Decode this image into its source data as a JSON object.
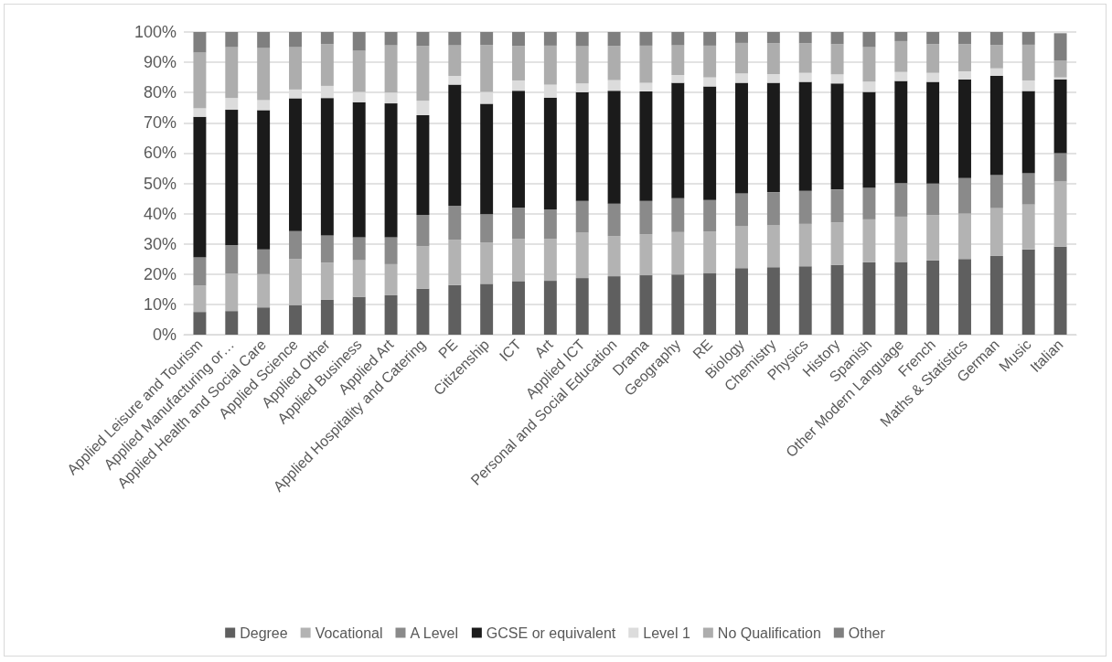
{
  "chart_data": {
    "type": "bar",
    "stacked": true,
    "grid": "y",
    "legend": "bottom",
    "categories": [
      "Applied Leisure and Tourism",
      "Applied Manufacturing or…",
      "Applied Health and Social Care",
      "Applied Science",
      "Applied Other",
      "Applied Business",
      "Applied Art",
      "Applied Hospitality and Catering",
      "PE",
      "Citizenship",
      "ICT",
      "Art",
      "Applied ICT",
      "Personal and Social Education",
      "Drama",
      "Geography",
      "RE",
      "Biology",
      "Chemistry",
      "Physics",
      "History",
      "Spanish",
      "Other Modern Language",
      "French",
      "Maths & Statistics",
      "German",
      "Music",
      "Italian"
    ],
    "series": [
      {
        "name": "Degree",
        "color": "#5f5f5f",
        "values": [
          7.5,
          7.8,
          9,
          9.8,
          11.5,
          12.5,
          13,
          15.2,
          16.4,
          16.8,
          17.7,
          17.8,
          18.7,
          19.3,
          19.6,
          19.9,
          20.4,
          22,
          22.3,
          22.6,
          23,
          23.9,
          24,
          24.5,
          25,
          26,
          28.2,
          29.1
        ]
      },
      {
        "name": "Vocational",
        "color": "#b3b3b3",
        "values": [
          8.7,
          12.4,
          11,
          15.2,
          12.3,
          12.1,
          10.3,
          14,
          15,
          13.7,
          13.9,
          13.8,
          15,
          13.3,
          13.6,
          14,
          13.7,
          13.8,
          13.8,
          14,
          14.1,
          14.2,
          15,
          15,
          15,
          15.8,
          14.8,
          21.5
        ]
      },
      {
        "name": "A Level",
        "color": "#8a8a8a",
        "values": [
          9.3,
          9.3,
          8.2,
          9.2,
          9,
          7.6,
          8.9,
          10.4,
          11.2,
          9.3,
          10.4,
          9.8,
          10.5,
          10.7,
          11,
          11.2,
          10.4,
          10.9,
          11,
          10.9,
          10.9,
          10.5,
          11.1,
          10.4,
          11.7,
          10.9,
          10.3,
          9.4
        ]
      },
      {
        "name": "GCSE or equivalent",
        "color": "#1b1b1b",
        "values": [
          46.5,
          44.8,
          46,
          43.9,
          45.4,
          44.6,
          44.2,
          32.9,
          40,
          36.5,
          38.6,
          36.9,
          35.9,
          37.3,
          36.2,
          38.1,
          37.5,
          36.5,
          36.1,
          36,
          35,
          31.6,
          33.7,
          33.6,
          32.6,
          32.8,
          27.2,
          24.4
        ]
      },
      {
        "name": "Level 1",
        "color": "#dcdcdc",
        "values": [
          2.8,
          3.9,
          3.3,
          2.9,
          4,
          3.4,
          3.6,
          4.8,
          2.9,
          3.9,
          3.4,
          4.3,
          2.9,
          3.5,
          2.8,
          2.6,
          3,
          3.1,
          2.9,
          3,
          3,
          3.4,
          3,
          3,
          2.7,
          2.5,
          3.5,
          0.6
        ]
      },
      {
        "name": "No Qualification",
        "color": "#adadad",
        "values": [
          18.4,
          16.8,
          17.2,
          14,
          13.8,
          13.6,
          15.6,
          18.1,
          10.1,
          15.5,
          11.4,
          12.9,
          12.3,
          11.3,
          12.3,
          9.8,
          10.5,
          10.1,
          10.2,
          9.8,
          10,
          11.4,
          10.2,
          9.5,
          9,
          7.7,
          11.8,
          5.5
        ]
      },
      {
        "name": "Other",
        "color": "#7f7f7f",
        "values": [
          6.8,
          5,
          5.3,
          5,
          4,
          6.2,
          4.4,
          4.6,
          4.4,
          4.3,
          4.6,
          4.5,
          4.7,
          4.6,
          4.5,
          4.4,
          4.5,
          3.6,
          3.7,
          3.7,
          4,
          5,
          3,
          4,
          4,
          4.3,
          4.2,
          9.1
        ]
      }
    ],
    "ylim": [
      0,
      100
    ],
    "yticks": [
      {
        "value": 0,
        "label": "0%"
      },
      {
        "value": 10,
        "label": "10%"
      },
      {
        "value": 20,
        "label": "20%"
      },
      {
        "value": 30,
        "label": "30%"
      },
      {
        "value": 40,
        "label": "40%"
      },
      {
        "value": 50,
        "label": "50%"
      },
      {
        "value": 60,
        "label": "60%"
      },
      {
        "value": 70,
        "label": "70%"
      },
      {
        "value": 80,
        "label": "80%"
      },
      {
        "value": 90,
        "label": "90%"
      },
      {
        "value": 100,
        "label": "100%"
      }
    ]
  }
}
